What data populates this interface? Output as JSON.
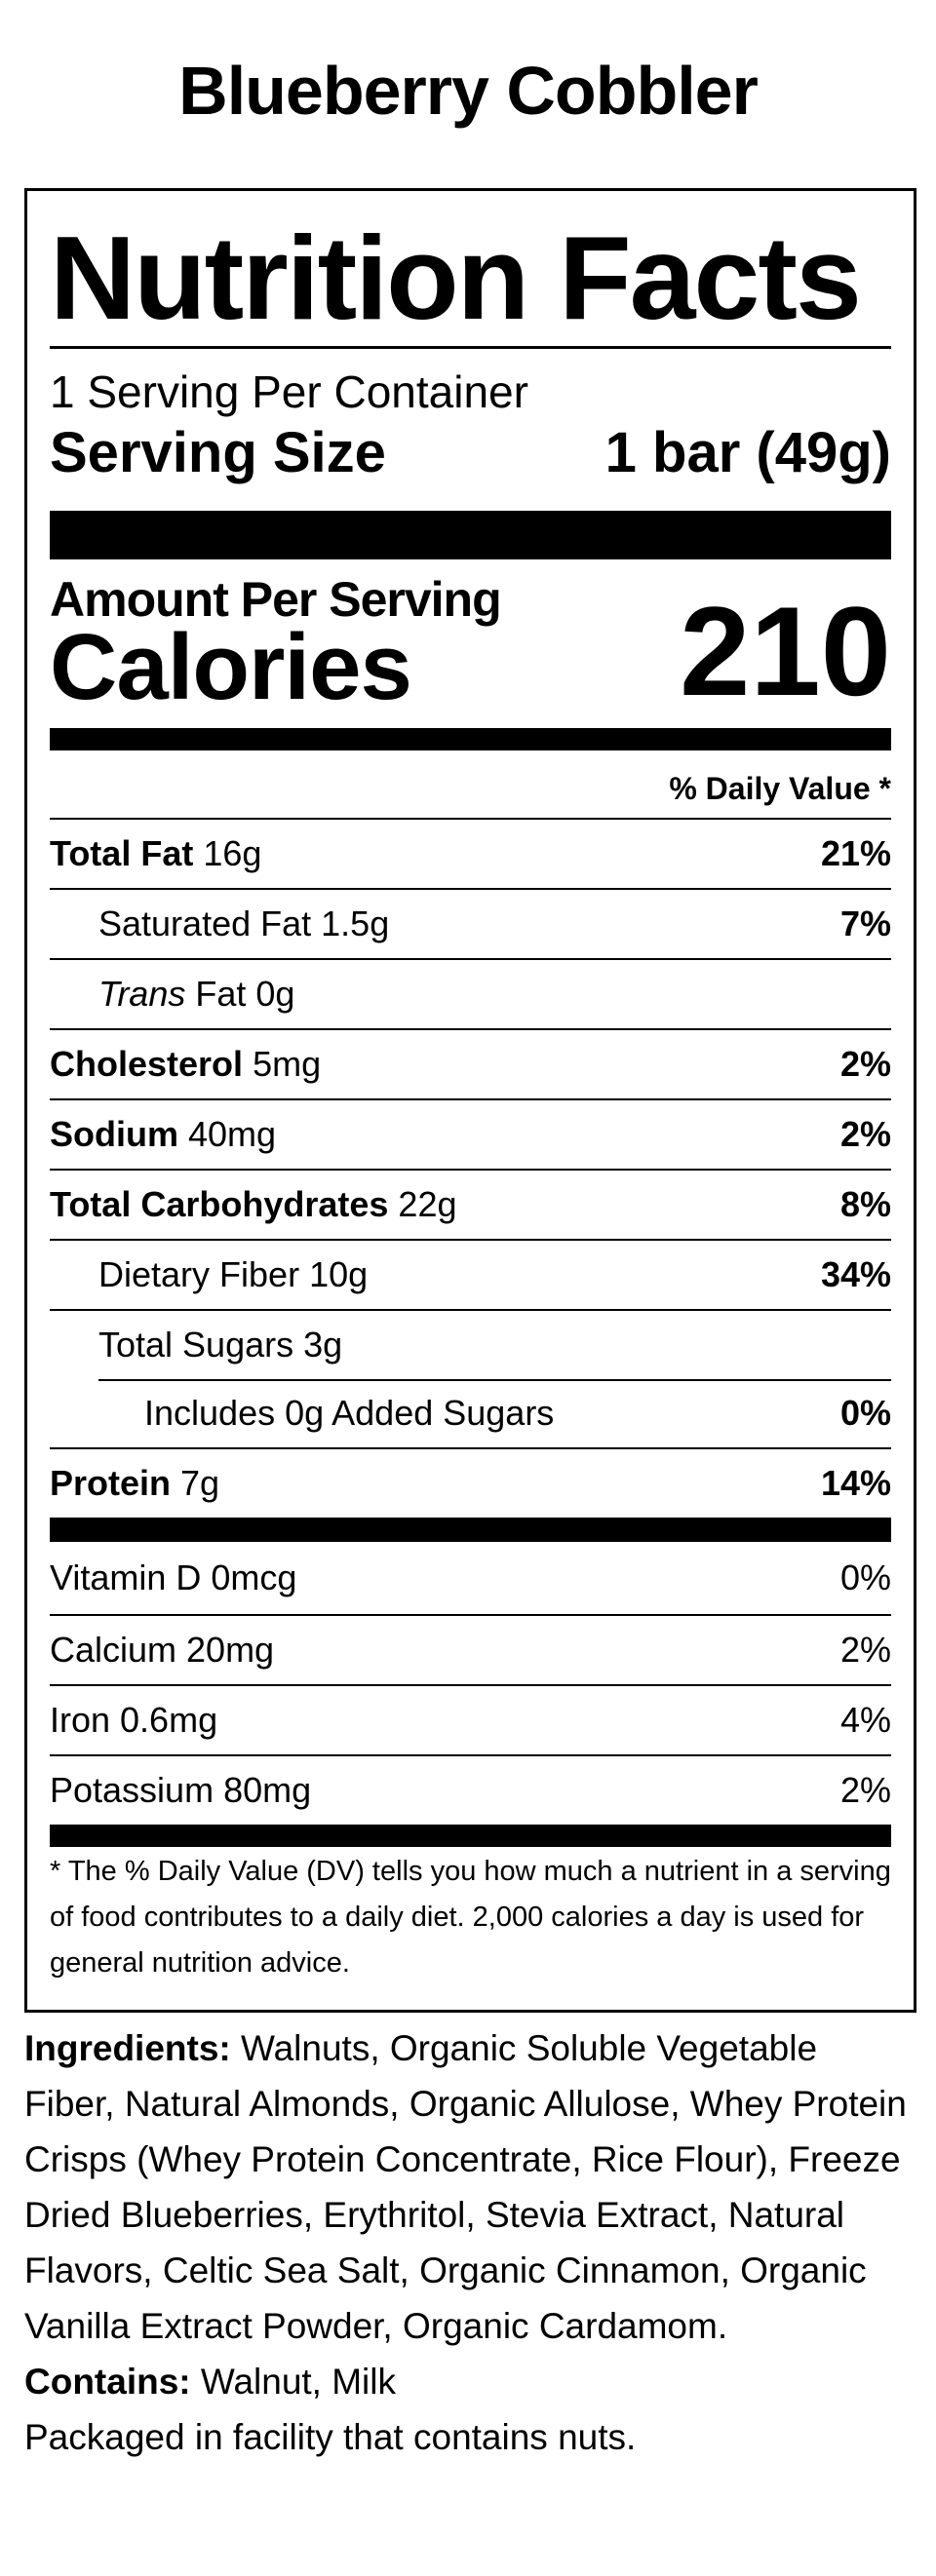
{
  "product_title": "Blueberry Cobbler",
  "label": {
    "title": "Nutrition Facts",
    "servings_per_container": "1 Serving Per Container",
    "serving_size_label": "Serving Size",
    "serving_size_value": "1 bar (49g)",
    "amount_per_serving": "Amount Per Serving",
    "calories_label": "Calories",
    "calories_value": "210",
    "daily_value_header": "% Daily Value *",
    "nutrients": [
      {
        "name": "Total Fat",
        "amount": "16g",
        "dv": "21%"
      },
      {
        "name": "Saturated Fat",
        "amount": "1.5g",
        "dv": "7%"
      },
      {
        "name": "Trans",
        "name_suffix": "Fat",
        "amount": "0g",
        "dv": ""
      },
      {
        "name": "Cholesterol",
        "amount": "5mg",
        "dv": "2%"
      },
      {
        "name": "Sodium",
        "amount": "40mg",
        "dv": "2%"
      },
      {
        "name": "Total Carbohydrates",
        "amount": "22g",
        "dv": "8%"
      },
      {
        "name": "Dietary Fiber",
        "amount": "10g",
        "dv": "34%"
      },
      {
        "name": "Total Sugars",
        "amount": "3g",
        "dv": ""
      },
      {
        "name": "Includes 0g Added Sugars",
        "amount": "",
        "dv": "0%"
      },
      {
        "name": "Protein",
        "amount": "7g",
        "dv": "14%"
      }
    ],
    "vitamins": [
      {
        "name": "Vitamin D 0mcg",
        "dv": "0%"
      },
      {
        "name": "Calcium 20mg",
        "dv": "2%"
      },
      {
        "name": "Iron 0.6mg",
        "dv": "4%"
      },
      {
        "name": "Potassium 80mg",
        "dv": "2%"
      }
    ],
    "footnote": "* The % Daily Value (DV) tells you how much a nutrient in a serving of food contributes to a daily diet. 2,000 calories a day is used for general nutrition advice."
  },
  "ingredients": {
    "label": "Ingredients:",
    "text": "Walnuts, Organic Soluble Vegetable Fiber, Natural Almonds, Organic Allulose, Whey Protein Crisps (Whey Protein Concentrate, Rice Flour), Freeze Dried Blueberries, Erythritol, Stevia Extract, Natural Flavors, Celtic Sea Salt, Organic Cinnamon, Organic Vanilla Extract Powder, Organic Cardamom.",
    "contains_label": "Contains:",
    "contains_text": "Walnut, Milk",
    "facility_note": "Packaged in facility that contains nuts."
  }
}
